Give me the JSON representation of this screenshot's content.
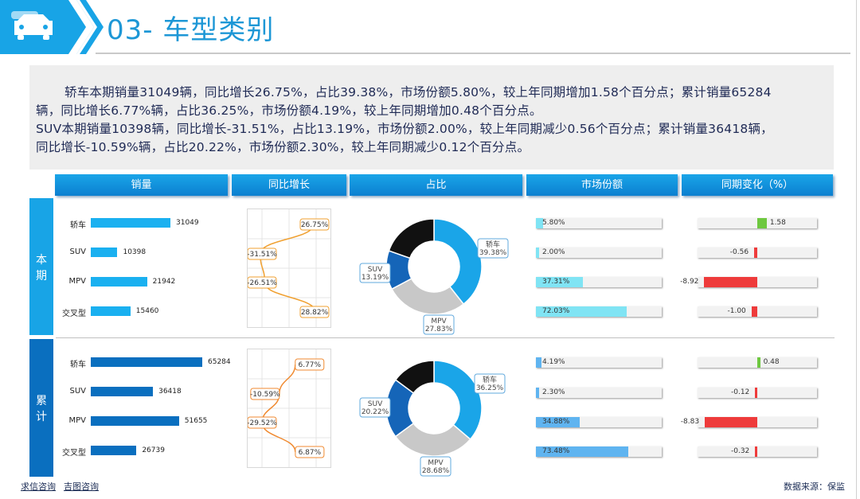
{
  "header": {
    "title": "03- 车型类别"
  },
  "summary": {
    "line1": "轿车本期销量31049辆，同比增长26.75%，占比39.38%，市场份额5.80%，较上年同期增加1.58个百分点；累计销量65284",
    "line2": "辆，同比增长6.77%辆，占比36.25%，市场份额4.19%，较上年同期增加0.48个百分点。",
    "line3": "SUV本期销量10398辆，同比增长-31.51%，占比13.19%，市场份额2.00%，较上年同期减少0.56个百分点；累计销量36418辆，",
    "line4": "同比增长-10.59%辆，占比20.22%，市场份额2.30%，较上年同期减少0.12个百分点。"
  },
  "columns": {
    "volume": "销量",
    "yoy": "同比增长",
    "share": "占比",
    "market": "市场份额",
    "change": "同期变化（%）"
  },
  "periods": {
    "current": [
      "本",
      "期"
    ],
    "cumulative": [
      "累",
      "计"
    ]
  },
  "colors": {
    "current_bar": "#1ab0f0",
    "cumulative_bar": "#0a6fbf",
    "header": "#1aa5e8",
    "positive": "#6ec840",
    "negative": "#ee3b3b",
    "market_current": "#80e4f4",
    "market_cumulative": "#5fb4f0",
    "donut_sedan": "#1aa5e8",
    "donut_suv": "#1565b8",
    "donut_mpv": "#c8c8c8",
    "donut_cross": "#111111"
  },
  "chart_data": [
    {
      "type": "bar",
      "name": "本期销量",
      "categories": [
        "轿车",
        "SUV",
        "MPV",
        "交叉型"
      ],
      "values": [
        31049,
        10398,
        21942,
        15460
      ],
      "value_labels": [
        "31049",
        "10398",
        "21942",
        "15460"
      ]
    },
    {
      "type": "bar",
      "name": "累计销量",
      "categories": [
        "轿车",
        "SUV",
        "MPV",
        "交叉型"
      ],
      "values": [
        65284,
        36418,
        51655,
        26739
      ],
      "value_labels": [
        "65284",
        "36418",
        "51655",
        "26739"
      ]
    },
    {
      "type": "line",
      "name": "本期同比增长",
      "categories": [
        "轿车",
        "SUV",
        "MPV",
        "交叉型"
      ],
      "values": [
        26.75,
        -31.51,
        -26.51,
        28.82
      ],
      "value_labels": [
        "26.75%",
        "-31.51%",
        "-26.51%",
        "28.82%"
      ]
    },
    {
      "type": "line",
      "name": "累计同比增长",
      "categories": [
        "轿车",
        "SUV",
        "MPV",
        "交叉型"
      ],
      "values": [
        6.77,
        -10.59,
        -29.52,
        6.87
      ],
      "value_labels": [
        "6.77%",
        "-10.59%",
        "-29.52%",
        "6.87%"
      ]
    },
    {
      "type": "pie",
      "name": "本期占比",
      "categories": [
        "轿车",
        "MPV",
        "SUV",
        "交叉型"
      ],
      "values": [
        39.38,
        27.83,
        13.19,
        19.6
      ],
      "labels": [
        "轿车 39.38%",
        "MPV 27.83%",
        "SUV 13.19%"
      ]
    },
    {
      "type": "pie",
      "name": "累计占比",
      "categories": [
        "轿车",
        "MPV",
        "SUV",
        "交叉型"
      ],
      "values": [
        36.25,
        28.68,
        20.22,
        14.85
      ],
      "labels": [
        "轿车 36.25%",
        "MPV 28.68%",
        "SUV 20.22%"
      ]
    },
    {
      "type": "bar",
      "name": "本期市场份额",
      "categories": [
        "轿车",
        "SUV",
        "MPV",
        "交叉型"
      ],
      "values": [
        5.8,
        2.0,
        37.31,
        72.03
      ],
      "value_labels": [
        "5.80%",
        "2.00%",
        "37.31%",
        "72.03%"
      ]
    },
    {
      "type": "bar",
      "name": "累计市场份额",
      "categories": [
        "轿车",
        "SUV",
        "MPV",
        "交叉型"
      ],
      "values": [
        4.19,
        2.3,
        34.88,
        73.48
      ],
      "value_labels": [
        "4.19%",
        "2.30%",
        "34.88%",
        "73.48%"
      ]
    },
    {
      "type": "bar",
      "name": "本期同期变化",
      "categories": [
        "轿车",
        "SUV",
        "MPV",
        "交叉型"
      ],
      "values": [
        1.58,
        -0.56,
        -8.92,
        -1.0
      ],
      "value_labels": [
        "1.58",
        "-0.56",
        "-8.92",
        "-1.00"
      ]
    },
    {
      "type": "bar",
      "name": "累计同期变化",
      "categories": [
        "轿车",
        "SUV",
        "MPV",
        "交叉型"
      ],
      "values": [
        0.48,
        -0.12,
        -8.83,
        -0.32
      ],
      "value_labels": [
        "0.48",
        "-0.12",
        "-8.83",
        "-0.32"
      ]
    }
  ],
  "footer": {
    "link1": "求信咨询",
    "link2": "吉图咨询",
    "source": "数据来源：保监"
  }
}
